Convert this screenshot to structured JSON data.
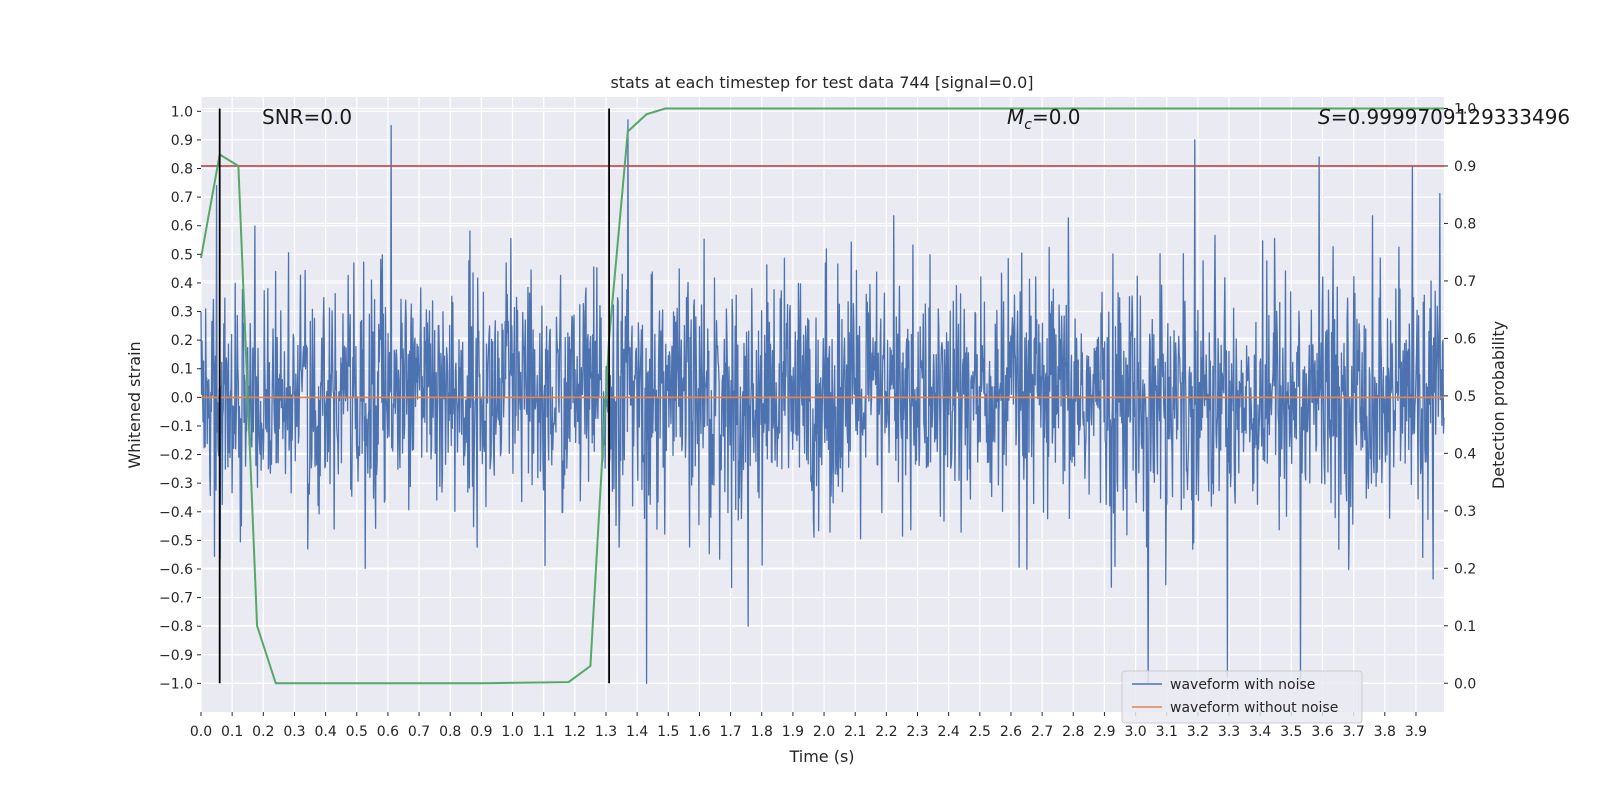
{
  "chart_data": {
    "type": "line",
    "title": "stats at each timestep for test data 744 [signal=0.0]",
    "xlabel": "Time (s)",
    "ylabel_left": "Whitened strain",
    "ylabel_right": "Detection probability",
    "xlim": [
      0.0,
      3.99
    ],
    "ylim_left": [
      -1.1,
      1.05
    ],
    "ylim_right": [
      -0.05,
      1.02
    ],
    "x_ticks": [
      "0.0",
      "0.1",
      "0.2",
      "0.3",
      "0.4",
      "0.5",
      "0.6",
      "0.7",
      "0.8",
      "0.9",
      "1.0",
      "1.1",
      "1.2",
      "1.3",
      "1.4",
      "1.5",
      "1.6",
      "1.7",
      "1.8",
      "1.9",
      "2.0",
      "2.1",
      "2.2",
      "2.3",
      "2.4",
      "2.5",
      "2.6",
      "2.7",
      "2.8",
      "2.9",
      "3.0",
      "3.1",
      "3.2",
      "3.3",
      "3.4",
      "3.5",
      "3.6",
      "3.7",
      "3.8",
      "3.9"
    ],
    "y_ticks_left": [
      "1.0",
      "0.9",
      "0.8",
      "0.7",
      "0.6",
      "0.5",
      "0.4",
      "0.3",
      "0.2",
      "0.1",
      "0.0",
      "−0.1",
      "−0.2",
      "−0.3",
      "−0.4",
      "−0.5",
      "−0.6",
      "−0.7",
      "−0.8",
      "−0.9",
      "−1.0"
    ],
    "y_ticks_right": [
      "1.0",
      "0.9",
      "0.8",
      "0.7",
      "0.6",
      "0.5",
      "0.4",
      "0.3",
      "0.2",
      "0.1",
      "0.0"
    ],
    "annotations": {
      "snr": "SNR=0.0",
      "mc_symbol": "M",
      "mc_sub": "c",
      "mc_value": "=0.0",
      "s_symbol": "S",
      "s_value": "=0.9999709129333496"
    },
    "series": [
      {
        "name": "waveform with noise",
        "color": "#4c72b0",
        "axis": "left",
        "note": "dense noise trace, sampled 2048 Hz, amplitude ~±0.5 with spikes to ±1.0",
        "peaks": [
          [
            0.61,
            0.95
          ],
          [
            0.05,
            0.74
          ],
          [
            1.37,
            0.97
          ],
          [
            1.43,
            -1.0
          ],
          [
            3.04,
            -1.0
          ],
          [
            3.53,
            -1.0
          ],
          [
            3.59,
            0.84
          ],
          [
            3.19,
            0.9
          ]
        ]
      },
      {
        "name": "waveform without noise",
        "color": "#dd8452",
        "axis": "left",
        "x": [
          0.0,
          3.99
        ],
        "y": [
          0.0,
          0.0
        ]
      },
      {
        "name": "",
        "color": "#55a868",
        "axis": "right",
        "x": [
          0.0,
          0.06,
          0.12,
          0.18,
          0.24,
          0.3,
          0.6,
          0.9,
          1.18,
          1.25,
          1.31,
          1.37,
          1.43,
          1.49,
          1.55,
          3.99
        ],
        "y": [
          0.74,
          0.92,
          0.9,
          0.1,
          0.0,
          0.0,
          0.0,
          0.0,
          0.002,
          0.03,
          0.6,
          0.96,
          0.99,
          1.0,
          1.0,
          1.0
        ]
      }
    ],
    "threshold": {
      "value": 0.9,
      "axis": "right",
      "color": "#c44e52"
    },
    "vlines": [
      0.06,
      1.31
    ],
    "vline_range_right": [
      0.0,
      1.0
    ],
    "legend": {
      "placement": "lower-right",
      "entries": [
        {
          "label": "waveform with noise",
          "color": "#4c72b0"
        },
        {
          "label": "waveform without noise",
          "color": "#dd8452"
        }
      ]
    },
    "grid": true,
    "background": "#eaeaf2"
  }
}
